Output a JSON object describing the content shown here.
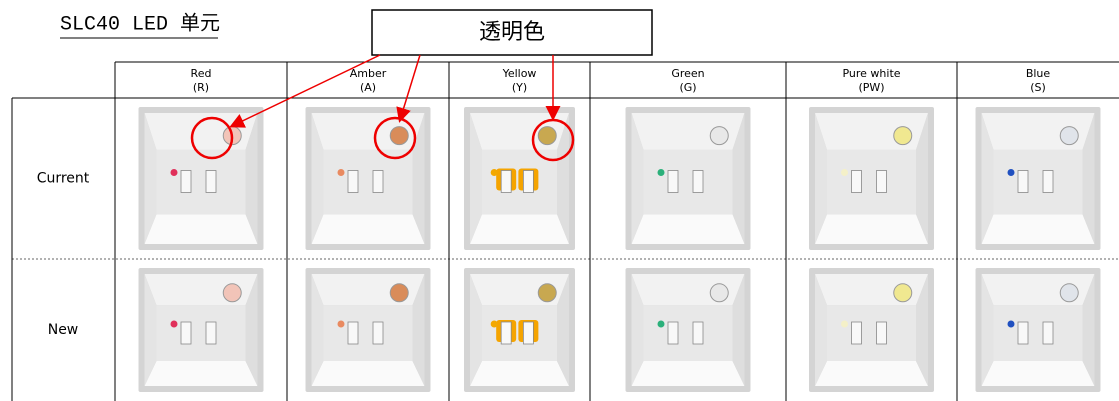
{
  "title": "SLC40 LED 单元",
  "callout": "透明色",
  "table": {
    "columns": [
      {
        "name": "Red",
        "code": "(R)"
      },
      {
        "name": "Amber",
        "code": "(A)"
      },
      {
        "name": "Yellow",
        "code": "(Y)"
      },
      {
        "name": "Green",
        "code": "(G)"
      },
      {
        "name": "Pure white",
        "code": "(PW)"
      },
      {
        "name": "Blue",
        "code": "(S)"
      }
    ],
    "rows": [
      "Current",
      "New"
    ]
  }
}
